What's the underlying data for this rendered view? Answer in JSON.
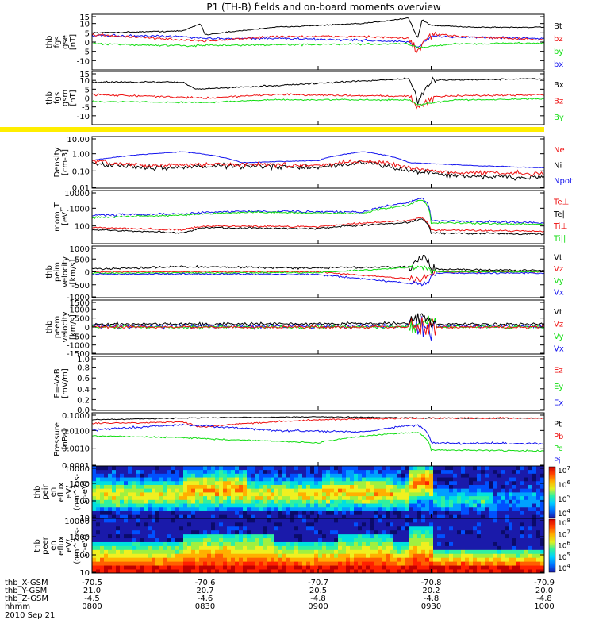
{
  "title": "P1 (TH-B) fields and on-board moments overview",
  "date_label": "2010 Sep 21",
  "colors": {
    "black": "#000000",
    "red": "#ee1111",
    "green": "#11dd11",
    "blue": "#1111ee",
    "yellow": "#ffee00"
  },
  "chart_data": {
    "type": "line",
    "x_label_rows": [
      {
        "label": "thb_X-GSM",
        "values": [
          "-70.5",
          "-70.6",
          "-70.7",
          "-70.8",
          "-70.9"
        ]
      },
      {
        "label": "thb_Y-GSM",
        "values": [
          "21.0",
          "20.7",
          "20.5",
          "20.2",
          "20.0"
        ]
      },
      {
        "label": "thb_Z-GSM",
        "values": [
          "-4.5",
          "-4.6",
          "-4.8",
          "-4.8",
          "-4.8"
        ]
      },
      {
        "label": "hhmm",
        "values": [
          "0800",
          "0830",
          "0900",
          "0930",
          "1000"
        ]
      }
    ],
    "x_range_hhmm": [
      "0800",
      "1000"
    ],
    "panels": [
      {
        "id": "fgs-gse",
        "ylabel": [
          "thb",
          "fgs",
          "gse",
          "[nT]"
        ],
        "ylim": [
          -15,
          15
        ],
        "yticks": [
          "-10",
          "-5",
          "0",
          "5",
          "10",
          "15"
        ],
        "legend": [
          {
            "name": "Bt",
            "color": "#000000"
          },
          {
            "name": "bz",
            "color": "#ee1111"
          },
          {
            "name": "by",
            "color": "#11dd11"
          },
          {
            "name": "bx",
            "color": "#1111ee"
          }
        ]
      },
      {
        "id": "fgs-gsm",
        "ylabel": [
          "thb",
          "fgs",
          "gsm",
          "[nT]"
        ],
        "ylim": [
          -15,
          15
        ],
        "yticks": [
          "-10",
          "-5",
          "0",
          "5",
          "10",
          "15"
        ],
        "legend": [
          {
            "name": "Bx",
            "color": "#000000"
          },
          {
            "name": "Bz",
            "color": "#ee1111"
          },
          {
            "name": "By",
            "color": "#11dd11"
          }
        ]
      },
      {
        "id": "density",
        "ylabel": [
          "Density",
          "[cm-3]"
        ],
        "ylim": [
          0.01,
          10
        ],
        "scale": "log",
        "yticks": [
          "0.01",
          "0.10",
          "1.00",
          "10.00"
        ],
        "legend": [
          {
            "name": "Ne",
            "color": "#ee1111"
          },
          {
            "name": "Ni",
            "color": "#000000"
          },
          {
            "name": "Npot",
            "color": "#1111ee"
          }
        ]
      },
      {
        "id": "temperature",
        "ylabel": [
          "mom_T",
          "[eV]"
        ],
        "ylim": [
          10,
          10000
        ],
        "scale": "log",
        "yticks": [
          "100",
          "1000",
          "10000"
        ],
        "legend": [
          {
            "name": "Te⊥",
            "color": "#ee1111"
          },
          {
            "name": "Te||",
            "color": "#000000"
          },
          {
            "name": "Ti⊥",
            "color": "#ee1111"
          },
          {
            "name": "Ti||",
            "color": "#11dd11"
          }
        ]
      },
      {
        "id": "peim-velocity",
        "ylabel": [
          "thb",
          "peim",
          "velocity",
          "[km/s]"
        ],
        "ylim": [
          -1000,
          1000
        ],
        "yticks": [
          "-1000",
          "-500",
          "0",
          "500",
          "1000"
        ],
        "legend": [
          {
            "name": "Vt",
            "color": "#000000"
          },
          {
            "name": "Vz",
            "color": "#ee1111"
          },
          {
            "name": "Vy",
            "color": "#11dd11"
          },
          {
            "name": "Vx",
            "color": "#1111ee"
          }
        ]
      },
      {
        "id": "peem-velocity",
        "ylabel": [
          "thb",
          "peem",
          "velocity",
          "[km/s]"
        ],
        "ylim": [
          -1500,
          1500
        ],
        "yticks": [
          "-1500",
          "-1000",
          "-500",
          "0",
          "500",
          "1000",
          "1500"
        ],
        "legend": [
          {
            "name": "Vt",
            "color": "#000000"
          },
          {
            "name": "Vz",
            "color": "#ee1111"
          },
          {
            "name": "Vy",
            "color": "#11dd11"
          },
          {
            "name": "Vx",
            "color": "#1111ee"
          }
        ]
      },
      {
        "id": "efield",
        "ylabel": [
          "E=-VxB",
          "[mV/m]"
        ],
        "ylim": [
          0,
          1
        ],
        "yticks": [
          "0.0",
          "0.2",
          "0.4",
          "0.6",
          "0.8",
          "1.0"
        ],
        "legend": [
          {
            "name": "Ez",
            "color": "#ee1111"
          },
          {
            "name": "Ey",
            "color": "#11dd11"
          },
          {
            "name": "Ex",
            "color": "#1111ee"
          }
        ]
      },
      {
        "id": "pressure",
        "ylabel": [
          "Pressure",
          "[nPa]"
        ],
        "ylim": [
          0.0001,
          0.1
        ],
        "scale": "log",
        "yticks": [
          "0.0001",
          "0.0010",
          "0.0100",
          "0.1000"
        ],
        "legend": [
          {
            "name": "Pt",
            "color": "#000000"
          },
          {
            "name": "Pb",
            "color": "#ee1111"
          },
          {
            "name": "Pe",
            "color": "#11dd11"
          },
          {
            "name": "Pi",
            "color": "#1111ee"
          }
        ]
      },
      {
        "id": "peir-spec",
        "ylabel": [
          "thb",
          "peir",
          "en",
          "eflux",
          "eV/",
          "(cm^2-s-",
          "sr-eV)"
        ],
        "ylim": [
          10,
          10000
        ],
        "scale": "log",
        "yticks": [
          "10",
          "100",
          "1000",
          "10000"
        ],
        "colorbar": [
          "10^4",
          "10^5",
          "10^6",
          "10^7"
        ]
      },
      {
        "id": "peer-spec",
        "ylabel": [
          "thb",
          "peer",
          "en",
          "eflux",
          "eV/",
          "(cm^2-s-",
          "sr-eV)"
        ],
        "ylim": [
          10,
          10000
        ],
        "scale": "log",
        "yticks": [
          "10",
          "100",
          "1000",
          "10000"
        ],
        "colorbar": [
          "10^4",
          "10^5",
          "10^6",
          "10^7",
          "10^8"
        ]
      }
    ]
  }
}
